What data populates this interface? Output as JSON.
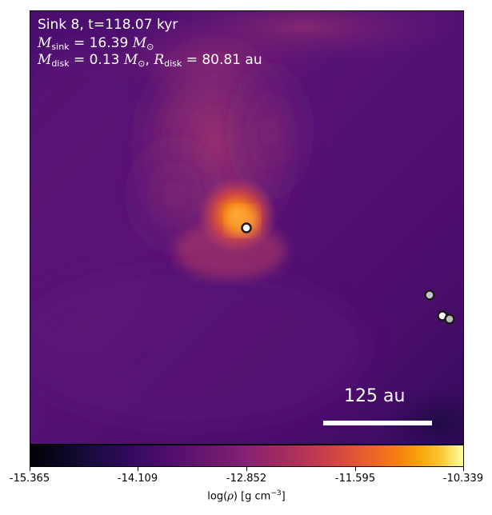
{
  "header": {
    "sink_line": "Sink 8, t=118.07 kyr",
    "msink_symbol": "M",
    "msink_sub": "sink",
    "msink_value": "= 16.39",
    "mdisk_symbol": "M",
    "mdisk_sub": "disk",
    "mdisk_value": "= 0.13",
    "rdisk_symbol": "R",
    "rdisk_sub": "disk",
    "rdisk_value": "= 80.81 au",
    "unit_symbol": "M",
    "unit_sub": "⊙"
  },
  "scale_bar": {
    "label": "125 au"
  },
  "colorbar": {
    "tick_labels": [
      "-15.365",
      "-14.109",
      "-12.852",
      "-11.595",
      "-10.339"
    ],
    "label_prefix": "log(",
    "label_rho": "ρ",
    "label_mid": ") [g cm",
    "label_exp": "−3",
    "label_suffix": "]",
    "colormap": "inferno"
  },
  "sinks": [
    {
      "name": "main-sink",
      "role": "focus"
    },
    {
      "name": "companion-sink-1",
      "role": "companion"
    },
    {
      "name": "companion-sink-2",
      "role": "companion"
    },
    {
      "name": "companion-sink-3",
      "role": "companion"
    }
  ],
  "colors": {
    "background_gas": "#3f0d6e",
    "inner_gas": "#b03f6b",
    "core_gas": "#f57d15",
    "sink_outline": "#1b1b1b"
  }
}
